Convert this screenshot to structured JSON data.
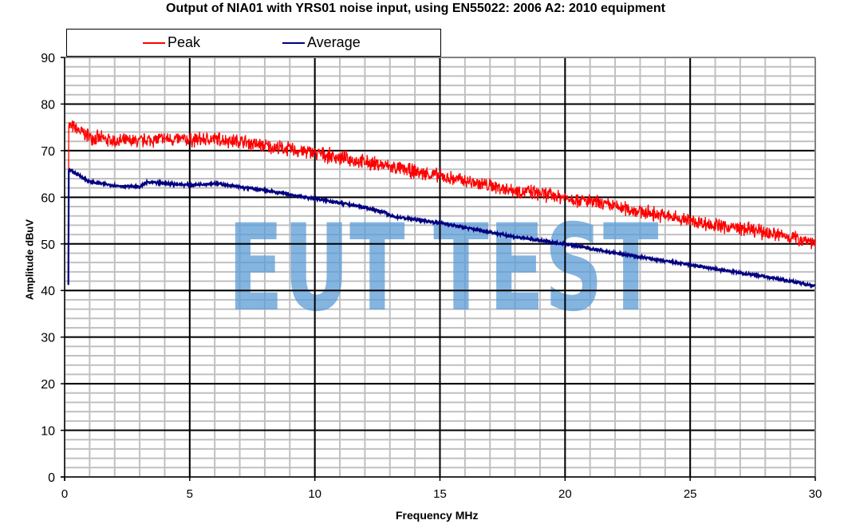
{
  "chart_data": {
    "type": "line",
    "title": "Output of NIA01 with YRS01 noise input, using EN55022: 2006 A2: 2010 equipment",
    "xlabel": "Frequency MHz",
    "ylabel": "Amplitude dBuV",
    "xlim": [
      0,
      30
    ],
    "ylim": [
      0,
      90
    ],
    "x_ticks": [
      0,
      5,
      10,
      15,
      20,
      25,
      30
    ],
    "y_ticks": [
      0,
      10,
      20,
      30,
      40,
      50,
      60,
      70,
      80,
      90
    ],
    "grid": {
      "major_x_step": 5,
      "minor_x_step": 1,
      "major_y_step": 10,
      "minor_y_step": 2
    },
    "legend": {
      "position": "top",
      "entries": [
        "Peak",
        "Average"
      ]
    },
    "watermark": "EUT TEST",
    "x": [
      0.15,
      0.5,
      1,
      2,
      3,
      3.3,
      4,
      5,
      6,
      7,
      8,
      9,
      10,
      11,
      12,
      12.8,
      13,
      14,
      15,
      16,
      17,
      18,
      19,
      20,
      21,
      22,
      23,
      24,
      25,
      26,
      27,
      28,
      29,
      30
    ],
    "series": [
      {
        "name": "Peak",
        "color": "#ff0000",
        "values": [
          75.5,
          74.5,
          73,
          72,
          72,
          72.3,
          72.5,
          72.3,
          72.5,
          72,
          71,
          70.3,
          69.5,
          68.5,
          67.5,
          66.8,
          66.5,
          65.5,
          64.5,
          63.5,
          62.5,
          61.5,
          60.8,
          60,
          59,
          58,
          57,
          56,
          55,
          54,
          53.3,
          52.5,
          51.5,
          50.5
        ]
      },
      {
        "name": "Average",
        "color": "#000080",
        "values": [
          66,
          65,
          63.3,
          62.5,
          62.2,
          63.2,
          63,
          62.6,
          63,
          62.2,
          61.5,
          60.6,
          59.7,
          58.8,
          57.8,
          56.8,
          56,
          55.2,
          54.5,
          53.5,
          52.5,
          51.5,
          50.7,
          50,
          49,
          48,
          47.2,
          46.3,
          45.5,
          44.6,
          43.8,
          43,
          42,
          41
        ]
      }
    ]
  },
  "labels": {
    "title": "Output of NIA01 with YRS01 noise input, using EN55022: 2006 A2: 2010 equipment",
    "legend_peak": "Peak",
    "legend_average": "Average",
    "xlabel": "Frequency MHz",
    "ylabel": "Amplitude dBuV",
    "watermark": "EUT TEST"
  }
}
